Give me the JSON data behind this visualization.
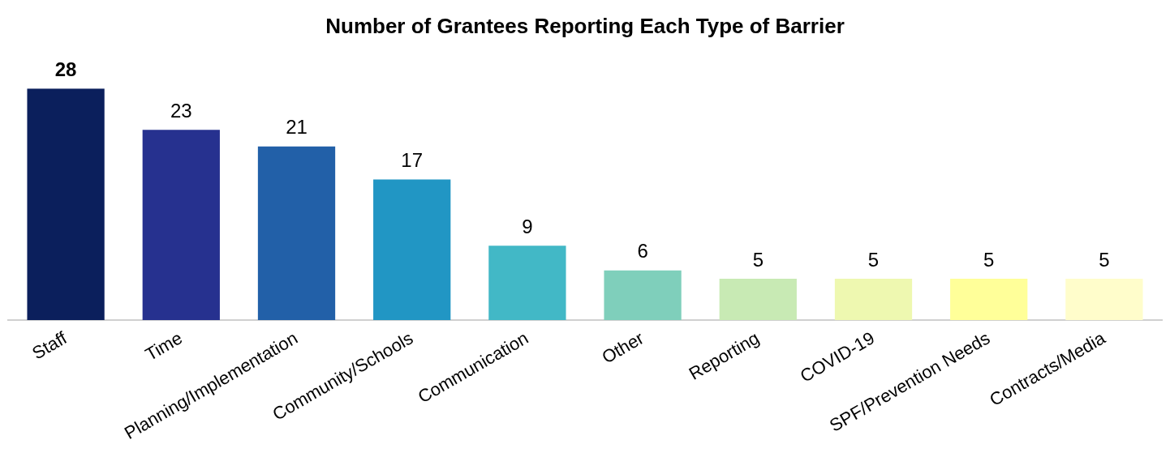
{
  "chart_data": {
    "type": "bar",
    "title": "Number of Grantees Reporting Each Type of Barrier",
    "categories": [
      "Staff",
      "Time",
      "Planning/Implementation",
      "Community/Schools",
      "Communication",
      "Other",
      "Reporting",
      "COVID-19",
      "SPF/Prevention Needs",
      "Contracts/Media"
    ],
    "values": [
      28,
      23,
      21,
      17,
      9,
      6,
      5,
      5,
      5,
      5
    ],
    "colors": [
      "#0b1f5c",
      "#26318f",
      "#2260a8",
      "#2196c4",
      "#42b8c6",
      "#7fcfbb",
      "#c8eab4",
      "#eef8b0",
      "#ffff99",
      "#fffdcb"
    ],
    "data_labels": true,
    "grid": false,
    "legend": false
  }
}
